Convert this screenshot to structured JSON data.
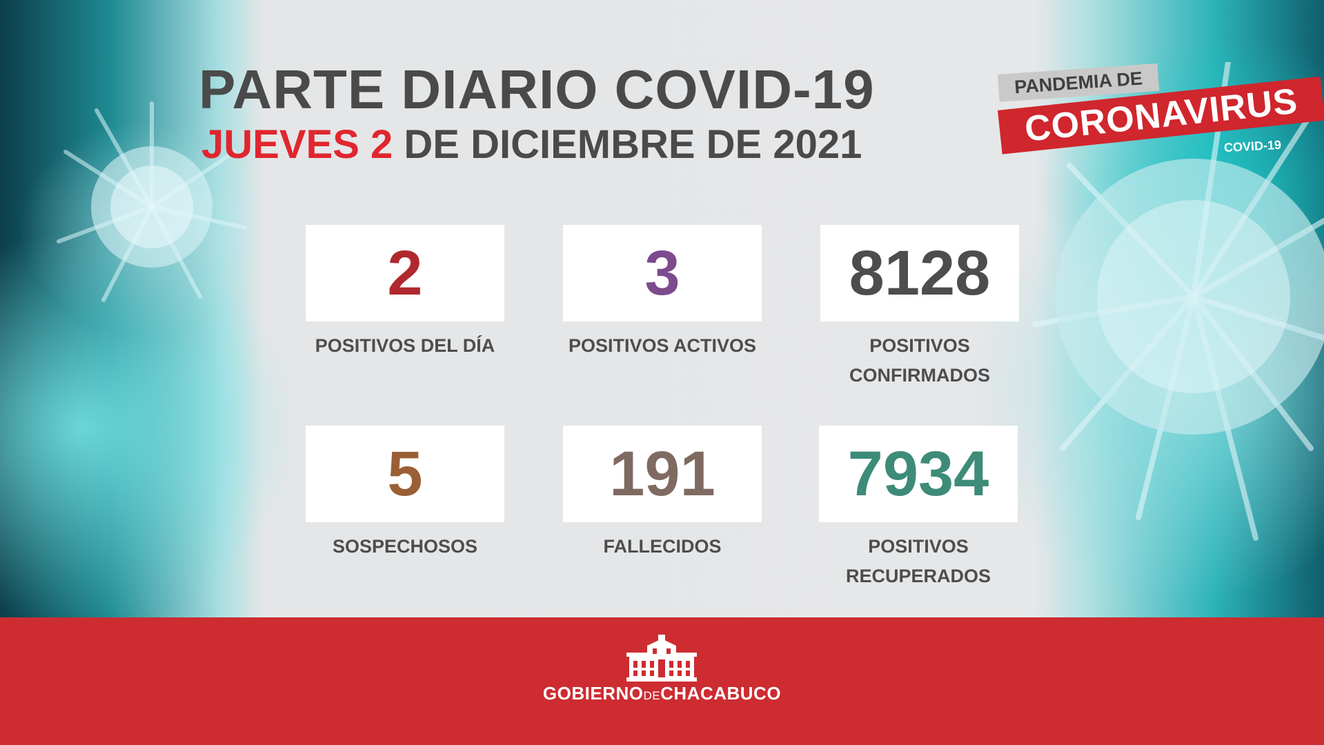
{
  "header": {
    "title": "PARTE DIARIO COVID-19",
    "date_highlight": "JUEVES 2",
    "date_rest": " DE DICIEMBRE DE 2021"
  },
  "badge": {
    "top": "PANDEMIA DE",
    "main": "CORONAVIRUS",
    "sub": "COVID-19"
  },
  "stats": [
    {
      "value": "2",
      "label": "POSITIVOS DEL DÍA",
      "color": "#b0282e"
    },
    {
      "value": "3",
      "label": "POSITIVOS ACTIVOS",
      "color": "#7d4a8e"
    },
    {
      "value": "8128",
      "label_line1": "POSITIVOS",
      "label_line2": "CONFIRMADOS",
      "color": "#4d4d4d"
    },
    {
      "value": "5",
      "label": "SOSPECHOSOS",
      "color": "#9a5f34"
    },
    {
      "value": "191",
      "label": "FALLECIDOS",
      "color": "#7f6a62"
    },
    {
      "value": "7934",
      "label_line1": "POSITIVOS",
      "label_line2": "RECUPERADOS",
      "color": "#3d8b78"
    }
  ],
  "footer": {
    "logo_part1": "GOBIERNO",
    "logo_part2": "DE",
    "logo_part3": "CHACABUCO",
    "background_color": "#cd2c31"
  }
}
